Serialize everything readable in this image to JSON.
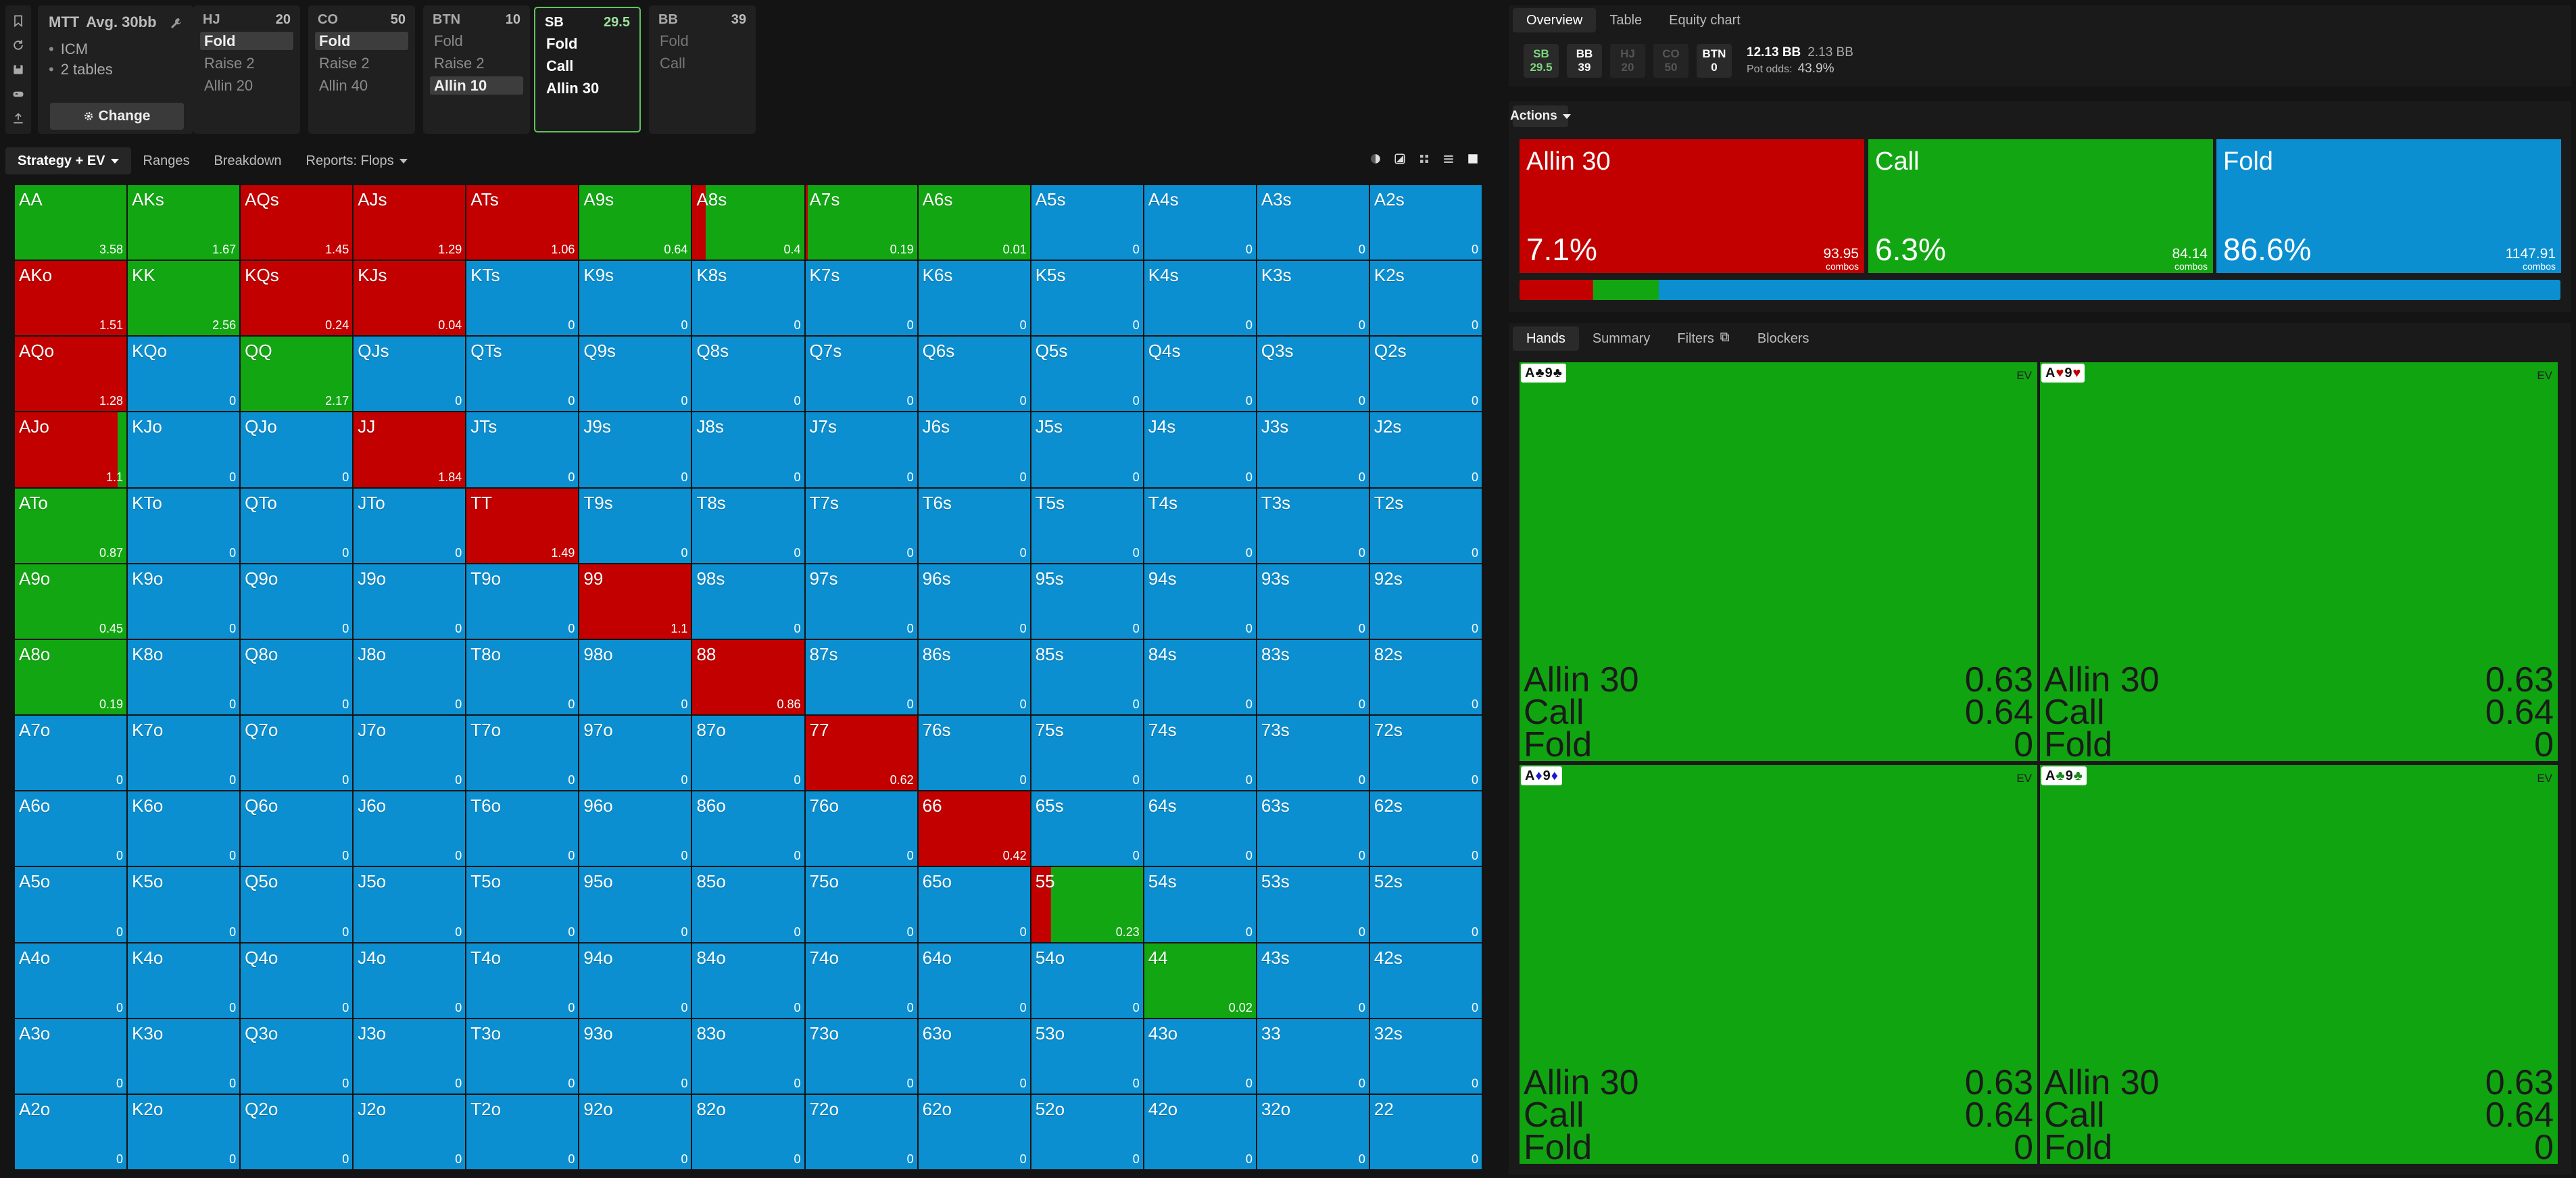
{
  "toolbar_icons": [
    "bookmark-icon",
    "refresh-icon",
    "save-icon",
    "controller-icon",
    "export-icon"
  ],
  "mtt": {
    "title": "MTT",
    "avg": "Avg. 30bb",
    "bullets": [
      "ICM",
      "2 tables"
    ],
    "change_label": "Change"
  },
  "positions": [
    {
      "name": "HJ",
      "stack": "20",
      "actions": [
        "Fold",
        "Raise 2",
        "Allin 20"
      ],
      "selected": 0
    },
    {
      "name": "CO",
      "stack": "50",
      "actions": [
        "Fold",
        "Raise 2",
        "Allin 40"
      ],
      "selected": 0
    },
    {
      "name": "BTN",
      "stack": "10",
      "actions": [
        "Fold",
        "Raise 2",
        "Allin 10"
      ],
      "selected": 2
    },
    {
      "name": "SB",
      "stack": "29.5",
      "actions": [
        "Fold",
        "Call",
        "Allin 30"
      ],
      "selected": -1
    },
    {
      "name": "BB",
      "stack": "39",
      "actions": [
        "Fold",
        "Call"
      ],
      "selected": -1
    }
  ],
  "tabs": [
    {
      "label": "Strategy + EV",
      "active": true,
      "dropdown": true
    },
    {
      "label": "Ranges",
      "active": false
    },
    {
      "label": "Breakdown",
      "active": false
    },
    {
      "label": "Reports: Flops",
      "active": false,
      "dropdown": true
    }
  ],
  "colors": {
    "allin": "#c20000",
    "call": "#12a712",
    "fold": "#0b8fd0"
  },
  "grid": [
    [
      "AA|A|3.58",
      "AKs|C|1.67",
      "AQs|R|1.45",
      "AJs|R|1.29",
      "ATs|R|1.06",
      "A9s|C|0.64",
      "A8s|RC:0.12|0.4",
      "A7s|RC:0.02|0.19",
      "A6s|C|0.01",
      "A5s|F|0",
      "A4s|F|0",
      "A3s|F|0",
      "A2s|F|0"
    ],
    [
      "AKo|R|1.51",
      "KK|C|2.56",
      "KQs|R|0.24",
      "KJs|R|0.04",
      "KTs|F|0",
      "K9s|F|0",
      "K8s|F|0",
      "K7s|F|0",
      "K6s|F|0",
      "K5s|F|0",
      "K4s|F|0",
      "K3s|F|0",
      "K2s|F|0"
    ],
    [
      "AQo|R|1.28",
      "KQo|F|0",
      "QQ|C|2.17",
      "QJs|F|0",
      "QTs|F|0",
      "Q9s|F|0",
      "Q8s|F|0",
      "Q7s|F|0",
      "Q6s|F|0",
      "Q5s|F|0",
      "Q4s|F|0",
      "Q3s|F|0",
      "Q2s|F|0"
    ],
    [
      "AJo|RC:0.92|1.1",
      "KJo|F|0",
      "QJo|F|0",
      "JJ|R|1.84",
      "JTs|F|0",
      "J9s|F|0",
      "J8s|F|0",
      "J7s|F|0",
      "J6s|F|0",
      "J5s|F|0",
      "J4s|F|0",
      "J3s|F|0",
      "J2s|F|0"
    ],
    [
      "ATo|C|0.87",
      "KTo|F|0",
      "QTo|F|0",
      "JTo|F|0",
      "TT|R|1.49",
      "T9s|F|0",
      "T8s|F|0",
      "T7s|F|0",
      "T6s|F|0",
      "T5s|F|0",
      "T4s|F|0",
      "T3s|F|0",
      "T2s|F|0"
    ],
    [
      "A9o|C|0.45",
      "K9o|F|0",
      "Q9o|F|0",
      "J9o|F|0",
      "T9o|F|0",
      "99|R|1.1",
      "98s|F|0",
      "97s|F|0",
      "96s|F|0",
      "95s|F|0",
      "94s|F|0",
      "93s|F|0",
      "92s|F|0"
    ],
    [
      "A8o|C|0.19",
      "K8o|F|0",
      "Q8o|F|0",
      "J8o|F|0",
      "T8o|F|0",
      "98o|F|0",
      "88|R|0.86",
      "87s|F|0",
      "86s|F|0",
      "85s|F|0",
      "84s|F|0",
      "83s|F|0",
      "82s|F|0"
    ],
    [
      "A7o|F|0",
      "K7o|F|0",
      "Q7o|F|0",
      "J7o|F|0",
      "T7o|F|0",
      "97o|F|0",
      "87o|F|0",
      "77|R|0.62",
      "76s|F|0",
      "75s|F|0",
      "74s|F|0",
      "73s|F|0",
      "72s|F|0"
    ],
    [
      "A6o|F|0",
      "K6o|F|0",
      "Q6o|F|0",
      "J6o|F|0",
      "T6o|F|0",
      "96o|F|0",
      "86o|F|0",
      "76o|F|0",
      "66|R|0.42",
      "65s|F|0",
      "64s|F|0",
      "63s|F|0",
      "62s|F|0"
    ],
    [
      "A5o|F|0",
      "K5o|F|0",
      "Q5o|F|0",
      "J5o|F|0",
      "T5o|F|0",
      "95o|F|0",
      "85o|F|0",
      "75o|F|0",
      "65o|F|0",
      "55|RC:0.18|0.23",
      "54s|F|0",
      "53s|F|0",
      "52s|F|0"
    ],
    [
      "A4o|F|0",
      "K4o|F|0",
      "Q4o|F|0",
      "J4o|F|0",
      "T4o|F|0",
      "94o|F|0",
      "84o|F|0",
      "74o|F|0",
      "64o|F|0",
      "54o|F|0",
      "44|C|0.02",
      "43s|F|0",
      "42s|F|0"
    ],
    [
      "A3o|F|0",
      "K3o|F|0",
      "Q3o|F|0",
      "J3o|F|0",
      "T3o|F|0",
      "93o|F|0",
      "83o|F|0",
      "73o|F|0",
      "63o|F|0",
      "53o|F|0",
      "43o|F|0",
      "33|F|0",
      "32s|F|0"
    ],
    [
      "A2o|F|0",
      "K2o|F|0",
      "Q2o|F|0",
      "J2o|F|0",
      "T2o|F|0",
      "92o|F|0",
      "82o|F|0",
      "72o|F|0",
      "62o|F|0",
      "52o|F|0",
      "42o|F|0",
      "32o|F|0",
      "22|F|0"
    ]
  ],
  "right": {
    "tabs": [
      "Overview",
      "Table",
      "Equity chart"
    ],
    "pos_chips": [
      {
        "name": "SB",
        "stack": "29.5",
        "cls": "sb"
      },
      {
        "name": "BB",
        "stack": "39",
        "cls": ""
      },
      {
        "name": "HJ",
        "stack": "20",
        "cls": "dim"
      },
      {
        "name": "CO",
        "stack": "50",
        "cls": "dim"
      },
      {
        "name": "BTN",
        "stack": "0",
        "cls": ""
      }
    ],
    "pot": "12.13 BB",
    "to_call": "2.13 BB",
    "pot_odds_label": "Pot odds:",
    "pot_odds": "43.9%",
    "actions_label": "Actions",
    "actions": [
      {
        "name": "Allin 30",
        "pct": "7.1%",
        "combos": "93.95",
        "color": "#c20000",
        "share": 0.071
      },
      {
        "name": "Call",
        "pct": "6.3%",
        "combos": "84.14",
        "color": "#12a712",
        "share": 0.063
      },
      {
        "name": "Fold",
        "pct": "86.6%",
        "combos": "1147.91",
        "color": "#0b8fd0",
        "share": 0.866
      }
    ],
    "combos_label": "combos",
    "hand_tabs": [
      "Hands",
      "Summary",
      "Filters",
      "Blockers"
    ],
    "hands": [
      {
        "c1": "A",
        "s1": "♣",
        "k1": "blk",
        "c2": "9",
        "s2": "♣",
        "k2": "blk",
        "rows": [
          [
            "Allin 30",
            "0.63"
          ],
          [
            "Call",
            "0.64"
          ],
          [
            "Fold",
            "0"
          ]
        ]
      },
      {
        "c1": "A",
        "s1": "♥",
        "k1": "red",
        "c2": "9",
        "s2": "♥",
        "k2": "red",
        "rows": [
          [
            "Allin 30",
            "0.63"
          ],
          [
            "Call",
            "0.64"
          ],
          [
            "Fold",
            "0"
          ]
        ]
      },
      {
        "c1": "A",
        "s1": "♦",
        "k1": "blu",
        "c2": "9",
        "s2": "♦",
        "k2": "blu",
        "rows": [
          [
            "Allin 30",
            "0.63"
          ],
          [
            "Call",
            "0.64"
          ],
          [
            "Fold",
            "0"
          ]
        ]
      },
      {
        "c1": "A",
        "s1": "♣",
        "k1": "grn",
        "c2": "9",
        "s2": "♣",
        "k2": "grn",
        "rows": [
          [
            "Allin 30",
            "0.63"
          ],
          [
            "Call",
            "0.64"
          ],
          [
            "Fold",
            "0"
          ]
        ]
      }
    ],
    "ev_label": "EV"
  }
}
